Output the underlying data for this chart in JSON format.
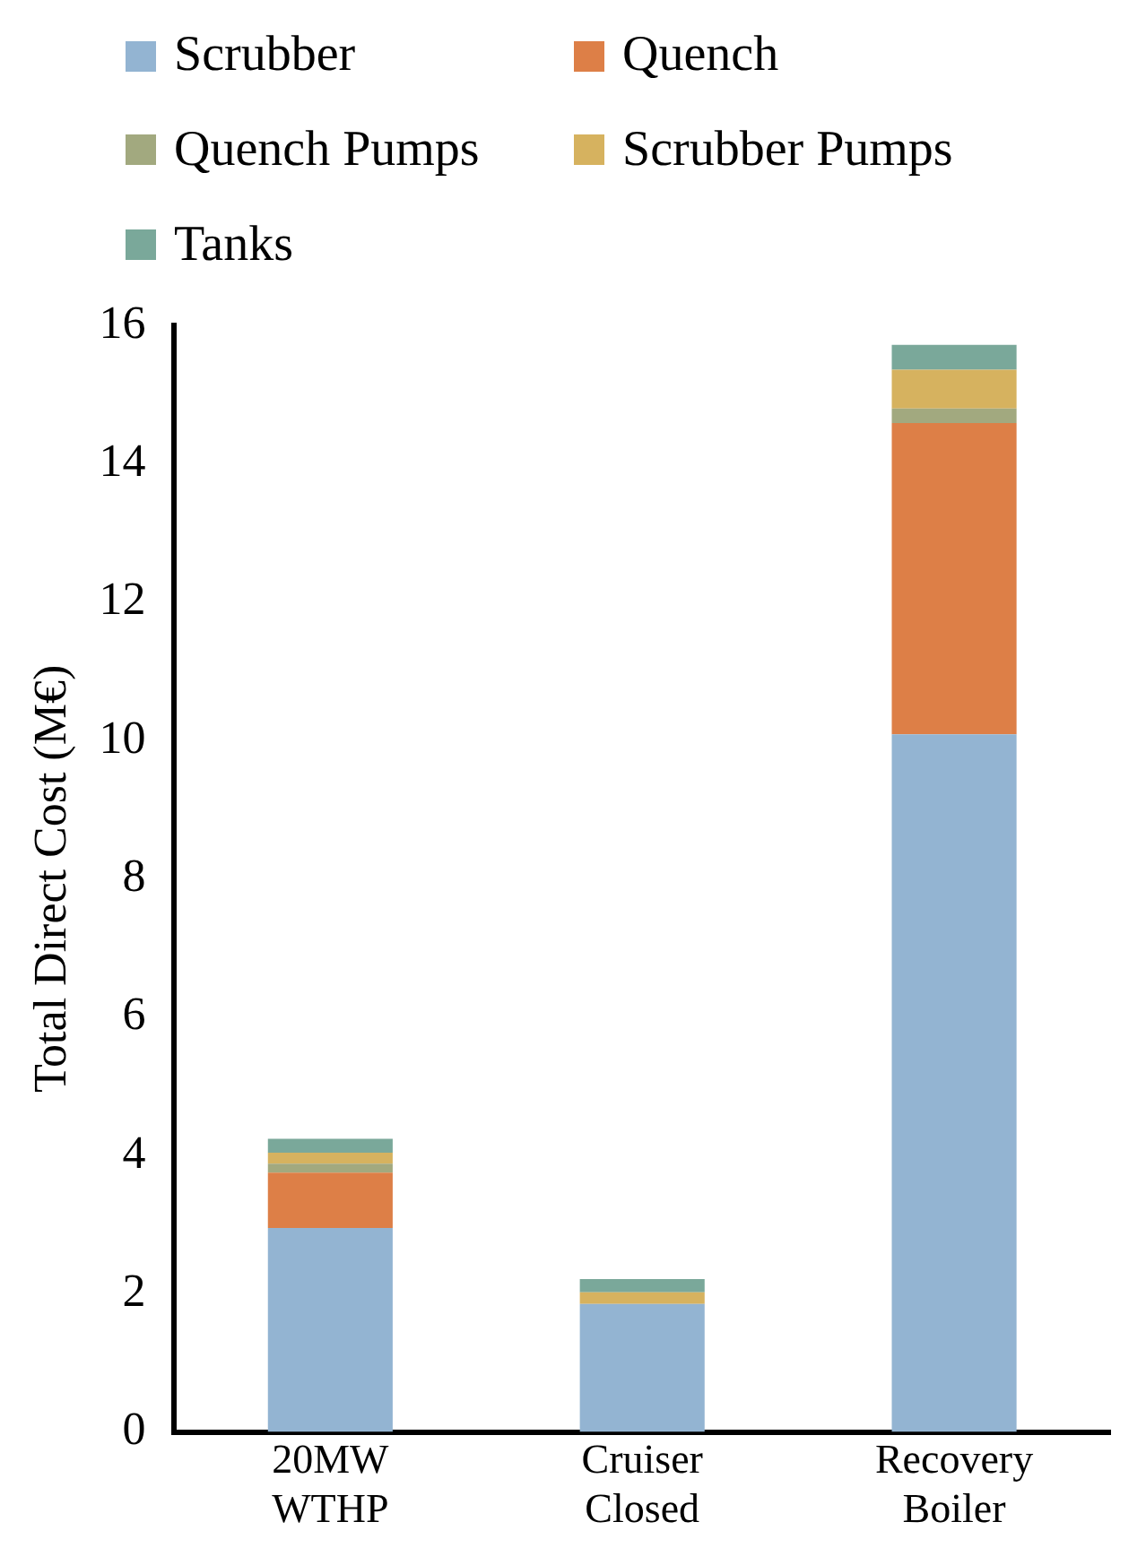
{
  "chart_data": {
    "type": "bar",
    "stacked": true,
    "ylabel": "Total Direct Cost (M€)",
    "categories": [
      "20MW WTHP",
      "Cruiser Closed",
      "Recovery Boiler"
    ],
    "series": [
      {
        "name": "Scrubber",
        "color": "#93b4d2",
        "values": [
          2.95,
          1.85,
          10.09
        ]
      },
      {
        "name": "Quench",
        "color": "#dd7f47",
        "values": [
          0.8,
          0,
          4.5
        ]
      },
      {
        "name": "Quench Pumps",
        "color": "#a2a97f",
        "values": [
          0.13,
          0,
          0.21
        ]
      },
      {
        "name": "Scrubber Pumps",
        "color": "#d6b25f",
        "values": [
          0.16,
          0.17,
          0.56
        ]
      },
      {
        "name": "Tanks",
        "color": "#7aa89a",
        "values": [
          0.2,
          0.19,
          0.36
        ]
      }
    ],
    "ylim": [
      0,
      16
    ],
    "yticks": [
      0,
      2,
      4,
      6,
      8,
      10,
      12,
      14,
      16
    ],
    "grid": false,
    "legend": "top"
  }
}
